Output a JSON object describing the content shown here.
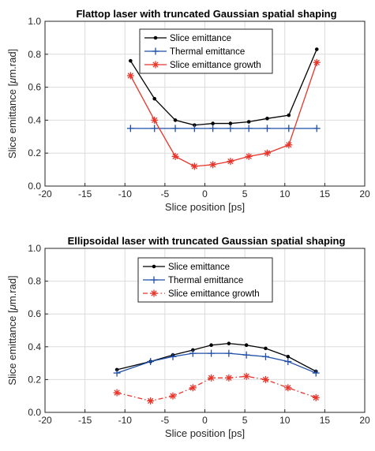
{
  "chart_data": [
    {
      "type": "line",
      "title": "Flattop laser with truncated Gaussian spatial shaping",
      "xlabel": "Slice position [ps]",
      "ylabel_prefix": "Slice emittance [",
      "ylabel_mu": "μ",
      "ylabel_suffix": "m.rad]",
      "xlim": [
        -20,
        20
      ],
      "ylim": [
        0,
        1.0
      ],
      "xticks": [
        -20,
        -15,
        -10,
        -5,
        0,
        5,
        10,
        15,
        20
      ],
      "yticks": [
        0,
        0.2,
        0.4,
        0.6,
        0.8,
        1.0
      ],
      "xtick_labels": [
        "-20",
        "-15",
        "-10",
        "-5",
        "0",
        "5",
        "10",
        "15",
        "20"
      ],
      "ytick_labels": [
        "0.0",
        "0.2",
        "0.4",
        "0.6",
        "0.8",
        "1.0"
      ],
      "grid": true,
      "legend_position": "top-center",
      "series": [
        {
          "name": "Slice emittance",
          "color": "#000000",
          "line": "solid",
          "marker": "dot",
          "x": [
            -9.3,
            -6.3,
            -3.7,
            -1.3,
            1.0,
            3.2,
            5.5,
            7.8,
            10.5,
            14.0
          ],
          "y": [
            0.76,
            0.53,
            0.4,
            0.37,
            0.38,
            0.38,
            0.39,
            0.41,
            0.43,
            0.83
          ]
        },
        {
          "name": "Thermal emittance",
          "color": "#1f4fa8",
          "line": "solid",
          "marker": "plus",
          "x": [
            -9.3,
            -6.3,
            -3.7,
            -1.3,
            1.0,
            3.2,
            5.5,
            7.8,
            10.5,
            14.0
          ],
          "y": [
            0.35,
            0.35,
            0.35,
            0.35,
            0.35,
            0.35,
            0.35,
            0.35,
            0.35,
            0.35
          ]
        },
        {
          "name": "Slice emittance growth",
          "color": "#e8342a",
          "line": "solid",
          "marker": "asterisk",
          "x": [
            -9.3,
            -6.3,
            -3.7,
            -1.3,
            1.0,
            3.2,
            5.5,
            7.8,
            10.5,
            14.0
          ],
          "y": [
            0.67,
            0.4,
            0.18,
            0.12,
            0.13,
            0.15,
            0.18,
            0.2,
            0.25,
            0.75
          ]
        }
      ]
    },
    {
      "type": "line",
      "title": "Ellipsoidal laser with truncated Gaussian spatial shaping",
      "xlabel": "Slice position [ps]",
      "ylabel_prefix": "Slice emittance [",
      "ylabel_mu": "μ",
      "ylabel_suffix": "m.rad]",
      "xlim": [
        -20,
        20
      ],
      "ylim": [
        0,
        1.0
      ],
      "xticks": [
        -20,
        -15,
        -10,
        -5,
        0,
        5,
        10,
        15,
        20
      ],
      "yticks": [
        0,
        0.2,
        0.4,
        0.6,
        0.8,
        1.0
      ],
      "xtick_labels": [
        "-20",
        "-15",
        "-10",
        "-5",
        "0",
        "5",
        "10",
        "15",
        "20"
      ],
      "ytick_labels": [
        "0.0",
        "0.2",
        "0.4",
        "0.6",
        "0.8",
        "1.0"
      ],
      "grid": true,
      "legend_position": "top-center",
      "series": [
        {
          "name": "Slice emittance",
          "color": "#000000",
          "line": "solid",
          "marker": "dot",
          "x": [
            -11.0,
            -6.8,
            -4.0,
            -1.5,
            0.8,
            3.0,
            5.2,
            7.6,
            10.4,
            13.9
          ],
          "y": [
            0.26,
            0.31,
            0.35,
            0.38,
            0.41,
            0.42,
            0.41,
            0.39,
            0.34,
            0.25
          ]
        },
        {
          "name": "Thermal emittance",
          "color": "#1f4fa8",
          "line": "solid",
          "marker": "plus",
          "x": [
            -11.0,
            -6.8,
            -4.0,
            -1.5,
            0.8,
            3.0,
            5.2,
            7.6,
            10.4,
            13.9
          ],
          "y": [
            0.24,
            0.31,
            0.34,
            0.36,
            0.36,
            0.36,
            0.35,
            0.34,
            0.31,
            0.24
          ]
        },
        {
          "name": "Slice emittance growth",
          "color": "#e8342a",
          "line": "dash-dot",
          "marker": "asterisk",
          "x": [
            -11.0,
            -6.8,
            -4.0,
            -1.5,
            0.8,
            3.0,
            5.2,
            7.6,
            10.4,
            13.9
          ],
          "y": [
            0.12,
            0.07,
            0.1,
            0.15,
            0.21,
            0.21,
            0.22,
            0.2,
            0.15,
            0.09
          ]
        }
      ]
    }
  ]
}
